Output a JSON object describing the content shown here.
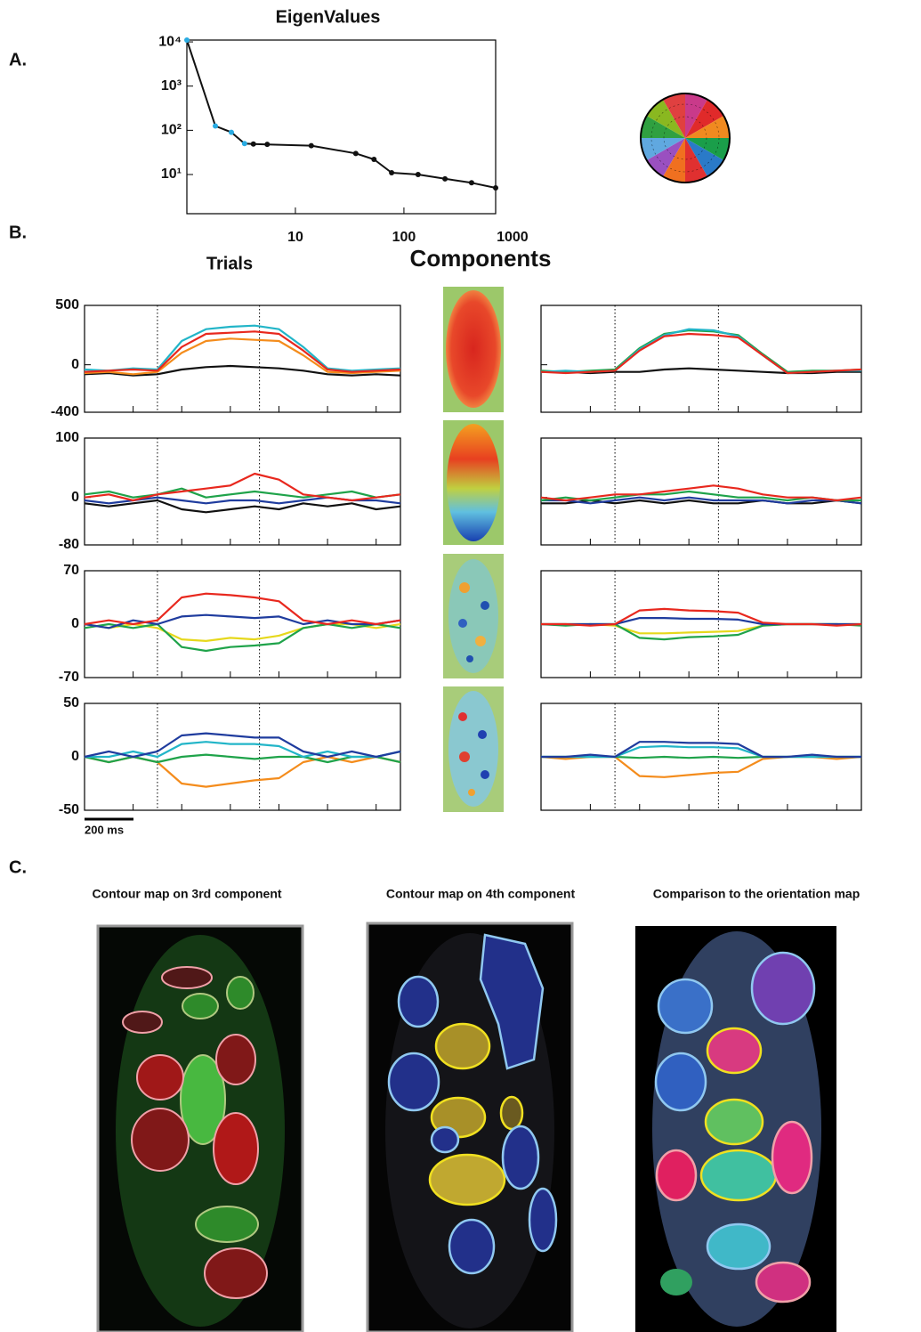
{
  "labels": {
    "a": "A.",
    "b": "B.",
    "c": "C."
  },
  "column_titles": {
    "trials": "Trials",
    "components": "Components"
  },
  "scale_bar": "200 ms",
  "contour_titles": [
    "Contour map on 3rd component",
    "Contour map on 4th component",
    "Comparison to the orientation map"
  ],
  "chart_data": [
    {
      "type": "line",
      "title": "EigenValues",
      "xlog": true,
      "ylog": true,
      "x": [
        1,
        1.83,
        2.57,
        3.4,
        4.1,
        5.5,
        14,
        36,
        53,
        77,
        135,
        239,
        420,
        700
      ],
      "series": [
        {
          "color": "#111111",
          "values": [
            11000,
            125,
            90,
            50,
            49,
            48,
            45,
            30,
            22,
            11,
            10,
            8,
            6.5,
            5
          ]
        }
      ],
      "marker_colors": [
        "#29abe2",
        "#29abe2",
        "#29abe2",
        "#29abe2",
        "#111111",
        "#111111",
        "#111111",
        "#111111",
        "#111111",
        "#111111",
        "#111111",
        "#111111",
        "#111111",
        "#111111"
      ],
      "xlim": [
        1,
        700
      ],
      "xticks": [
        10,
        100,
        1000
      ],
      "ylim": [
        1.3,
        11000
      ],
      "yticks": [
        {
          "value": 10,
          "label": "10¹"
        },
        {
          "value": 100,
          "label": "10²"
        },
        {
          "value": 1000,
          "label": "10³"
        },
        {
          "value": 10000,
          "label": "10⁴"
        }
      ]
    },
    {
      "type": "line",
      "tick_labels": true,
      "x": [
        0,
        100,
        200,
        300,
        400,
        500,
        600,
        700,
        800,
        900,
        1000,
        1100,
        1200,
        1300
      ],
      "xlim": [
        0,
        1300
      ],
      "xticks": [
        200,
        400,
        600,
        800,
        1000,
        1200
      ],
      "stimulus_lines": [
        300,
        720
      ],
      "ylim": [
        -400,
        500
      ],
      "yticks": [
        500,
        0,
        -400
      ],
      "series": [
        {
          "color": "#111111",
          "values": [
            -80,
            -70,
            -90,
            -80,
            -40,
            -20,
            -10,
            -20,
            -30,
            -50,
            -80,
            -90,
            -80,
            -90
          ]
        },
        {
          "color": "#f48c1c",
          "values": [
            -70,
            -60,
            -80,
            -60,
            100,
            200,
            220,
            210,
            200,
            80,
            -60,
            -70,
            -60,
            -50
          ]
        },
        {
          "color": "#22b5c8",
          "values": [
            -40,
            -50,
            -30,
            -40,
            200,
            300,
            320,
            330,
            300,
            150,
            -30,
            -50,
            -40,
            -30
          ]
        },
        {
          "color": "#e8281e",
          "values": [
            -60,
            -50,
            -40,
            -50,
            150,
            260,
            270,
            280,
            260,
            120,
            -40,
            -60,
            -50,
            -40
          ]
        }
      ]
    },
    {
      "type": "line",
      "tick_labels": true,
      "x": [
        0,
        100,
        200,
        300,
        400,
        500,
        600,
        700,
        800,
        900,
        1000,
        1100,
        1200,
        1300
      ],
      "xlim": [
        0,
        1300
      ],
      "xticks": [
        200,
        400,
        600,
        800,
        1000,
        1200
      ],
      "stimulus_lines": [
        300,
        720
      ],
      "ylim": [
        -80,
        100
      ],
      "yticks": [
        100,
        0,
        -80
      ],
      "series": [
        {
          "color": "#111111",
          "values": [
            -10,
            -15,
            -10,
            -5,
            -20,
            -25,
            -20,
            -15,
            -20,
            -10,
            -15,
            -10,
            -20,
            -15
          ]
        },
        {
          "color": "#1f3c9e",
          "values": [
            -5,
            -10,
            -5,
            0,
            -5,
            -10,
            -5,
            -5,
            -10,
            -5,
            0,
            -5,
            -5,
            -10
          ]
        },
        {
          "color": "#1fa34a",
          "values": [
            5,
            10,
            0,
            5,
            15,
            0,
            5,
            10,
            5,
            0,
            5,
            10,
            0,
            5
          ]
        },
        {
          "color": "#e8281e",
          "values": [
            0,
            5,
            -5,
            5,
            10,
            15,
            20,
            40,
            30,
            5,
            0,
            -5,
            0,
            5
          ]
        }
      ]
    },
    {
      "type": "line",
      "tick_labels": true,
      "x": [
        0,
        100,
        200,
        300,
        400,
        500,
        600,
        700,
        800,
        900,
        1000,
        1100,
        1200,
        1300
      ],
      "xlim": [
        0,
        1300
      ],
      "xticks": [
        200,
        400,
        600,
        800,
        1000,
        1200
      ],
      "stimulus_lines": [
        300,
        720
      ],
      "ylim": [
        -70,
        70
      ],
      "yticks": [
        70,
        0,
        -70
      ],
      "series": [
        {
          "color": "#e6d81c",
          "values": [
            0,
            -5,
            0,
            -5,
            -20,
            -22,
            -18,
            -20,
            -15,
            -5,
            0,
            0,
            -5,
            0
          ]
        },
        {
          "color": "#1fa34a",
          "values": [
            -5,
            0,
            -5,
            0,
            -30,
            -35,
            -30,
            -28,
            -25,
            -5,
            0,
            -5,
            0,
            -5
          ]
        },
        {
          "color": "#1f3c9e",
          "values": [
            0,
            -5,
            5,
            0,
            10,
            12,
            10,
            8,
            10,
            0,
            5,
            0,
            0,
            5
          ]
        },
        {
          "color": "#e8281e",
          "values": [
            0,
            5,
            0,
            5,
            35,
            40,
            38,
            35,
            30,
            5,
            0,
            5,
            0,
            5
          ]
        }
      ]
    },
    {
      "type": "line",
      "tick_labels": true,
      "x": [
        0,
        100,
        200,
        300,
        400,
        500,
        600,
        700,
        800,
        900,
        1000,
        1100,
        1200,
        1300
      ],
      "xlim": [
        0,
        1300
      ],
      "xticks": [
        200,
        400,
        600,
        800,
        1000,
        1200
      ],
      "stimulus_lines": [
        300,
        720
      ],
      "ylim": [
        -50,
        50
      ],
      "yticks": [
        50,
        0,
        -50
      ],
      "series": [
        {
          "color": "#f48c1c",
          "values": [
            0,
            -5,
            0,
            -5,
            -25,
            -28,
            -25,
            -22,
            -20,
            -5,
            0,
            -5,
            0,
            -5
          ]
        },
        {
          "color": "#1fa34a",
          "values": [
            0,
            -5,
            0,
            -5,
            0,
            2,
            0,
            -2,
            0,
            0,
            -5,
            0,
            0,
            -5
          ]
        },
        {
          "color": "#22b5c8",
          "values": [
            0,
            0,
            5,
            0,
            12,
            14,
            12,
            12,
            10,
            0,
            5,
            0,
            0,
            5
          ]
        },
        {
          "color": "#1f3c9e",
          "values": [
            0,
            5,
            0,
            5,
            20,
            22,
            20,
            18,
            18,
            5,
            0,
            5,
            0,
            5
          ]
        }
      ]
    },
    {
      "type": "line",
      "tick_labels": false,
      "x": [
        0,
        100,
        200,
        300,
        400,
        500,
        600,
        700,
        800,
        900,
        1000,
        1100,
        1200,
        1300
      ],
      "xlim": [
        0,
        1300
      ],
      "xticks": [
        200,
        400,
        600,
        800,
        1000,
        1200
      ],
      "stimulus_lines": [
        300,
        720
      ],
      "ylim": [
        -400,
        500
      ],
      "yticks": [
        500,
        0,
        -400
      ],
      "series": [
        {
          "color": "#111111",
          "values": [
            -60,
            -60,
            -70,
            -60,
            -60,
            -40,
            -30,
            -40,
            -50,
            -60,
            -70,
            -70,
            -60,
            -60
          ]
        },
        {
          "color": "#1fa34a",
          "values": [
            -50,
            -60,
            -50,
            -40,
            140,
            260,
            290,
            280,
            250,
            90,
            -60,
            -50,
            -50,
            -40
          ]
        },
        {
          "color": "#22b5c8",
          "values": [
            -60,
            -50,
            -60,
            -50,
            130,
            250,
            300,
            290,
            240,
            80,
            -70,
            -60,
            -50,
            -50
          ]
        },
        {
          "color": "#e8281e",
          "values": [
            -60,
            -70,
            -60,
            -50,
            120,
            240,
            260,
            250,
            230,
            80,
            -70,
            -60,
            -50,
            -40
          ]
        }
      ]
    },
    {
      "type": "line",
      "tick_labels": false,
      "x": [
        0,
        100,
        200,
        300,
        400,
        500,
        600,
        700,
        800,
        900,
        1000,
        1100,
        1200,
        1300
      ],
      "xlim": [
        0,
        1300
      ],
      "xticks": [
        200,
        400,
        600,
        800,
        1000,
        1200
      ],
      "stimulus_lines": [
        300,
        720
      ],
      "ylim": [
        -80,
        100
      ],
      "yticks": [
        100,
        0,
        -80
      ],
      "series": [
        {
          "color": "#111111",
          "values": [
            -10,
            -10,
            -5,
            -10,
            -5,
            -10,
            -5,
            -10,
            -10,
            -5,
            -10,
            -10,
            -5,
            -10
          ]
        },
        {
          "color": "#1f3c9e",
          "values": [
            -5,
            -5,
            -10,
            -5,
            0,
            -5,
            0,
            -5,
            -5,
            -5,
            -10,
            -5,
            -5,
            -10
          ]
        },
        {
          "color": "#1fa34a",
          "values": [
            -5,
            0,
            -5,
            0,
            5,
            5,
            10,
            5,
            0,
            0,
            -5,
            0,
            -5,
            -5
          ]
        },
        {
          "color": "#e8281e",
          "values": [
            0,
            -5,
            0,
            5,
            5,
            10,
            15,
            20,
            15,
            5,
            0,
            0,
            -5,
            0
          ]
        }
      ]
    },
    {
      "type": "line",
      "tick_labels": false,
      "x": [
        0,
        100,
        200,
        300,
        400,
        500,
        600,
        700,
        800,
        900,
        1000,
        1100,
        1200,
        1300
      ],
      "xlim": [
        0,
        1300
      ],
      "xticks": [
        200,
        400,
        600,
        800,
        1000,
        1200
      ],
      "stimulus_lines": [
        300,
        720
      ],
      "ylim": [
        -70,
        70
      ],
      "yticks": [
        70,
        0,
        -70
      ],
      "series": [
        {
          "color": "#e6d81c",
          "values": [
            0,
            0,
            0,
            -2,
            -12,
            -12,
            -11,
            -10,
            -9,
            -2,
            0,
            0,
            0,
            0
          ]
        },
        {
          "color": "#1fa34a",
          "values": [
            0,
            -2,
            0,
            0,
            -18,
            -20,
            -17,
            -16,
            -14,
            -2,
            0,
            0,
            0,
            -2
          ]
        },
        {
          "color": "#1f3c9e",
          "values": [
            0,
            0,
            0,
            0,
            8,
            8,
            7,
            7,
            6,
            0,
            0,
            0,
            0,
            0
          ]
        },
        {
          "color": "#e8281e",
          "values": [
            0,
            0,
            -2,
            0,
            18,
            20,
            18,
            17,
            15,
            2,
            0,
            0,
            -2,
            0
          ]
        }
      ]
    },
    {
      "type": "line",
      "tick_labels": false,
      "x": [
        0,
        100,
        200,
        300,
        400,
        500,
        600,
        700,
        800,
        900,
        1000,
        1100,
        1200,
        1300
      ],
      "xlim": [
        0,
        1300
      ],
      "xticks": [
        200,
        400,
        600,
        800,
        1000,
        1200
      ],
      "stimulus_lines": [
        300,
        720
      ],
      "ylim": [
        -50,
        50
      ],
      "yticks": [
        50,
        0,
        -50
      ],
      "series": [
        {
          "color": "#f48c1c",
          "values": [
            0,
            -2,
            0,
            0,
            -18,
            -19,
            -17,
            -15,
            -14,
            -2,
            0,
            0,
            -2,
            0
          ]
        },
        {
          "color": "#1fa34a",
          "values": [
            0,
            0,
            0,
            0,
            -1,
            0,
            -1,
            0,
            -1,
            0,
            0,
            0,
            0,
            0
          ]
        },
        {
          "color": "#22b5c8",
          "values": [
            0,
            0,
            0,
            0,
            9,
            10,
            9,
            9,
            8,
            0,
            0,
            0,
            0,
            0
          ]
        },
        {
          "color": "#1f3c9e",
          "values": [
            0,
            0,
            2,
            0,
            14,
            14,
            13,
            13,
            12,
            0,
            0,
            2,
            0,
            0
          ]
        }
      ]
    }
  ]
}
